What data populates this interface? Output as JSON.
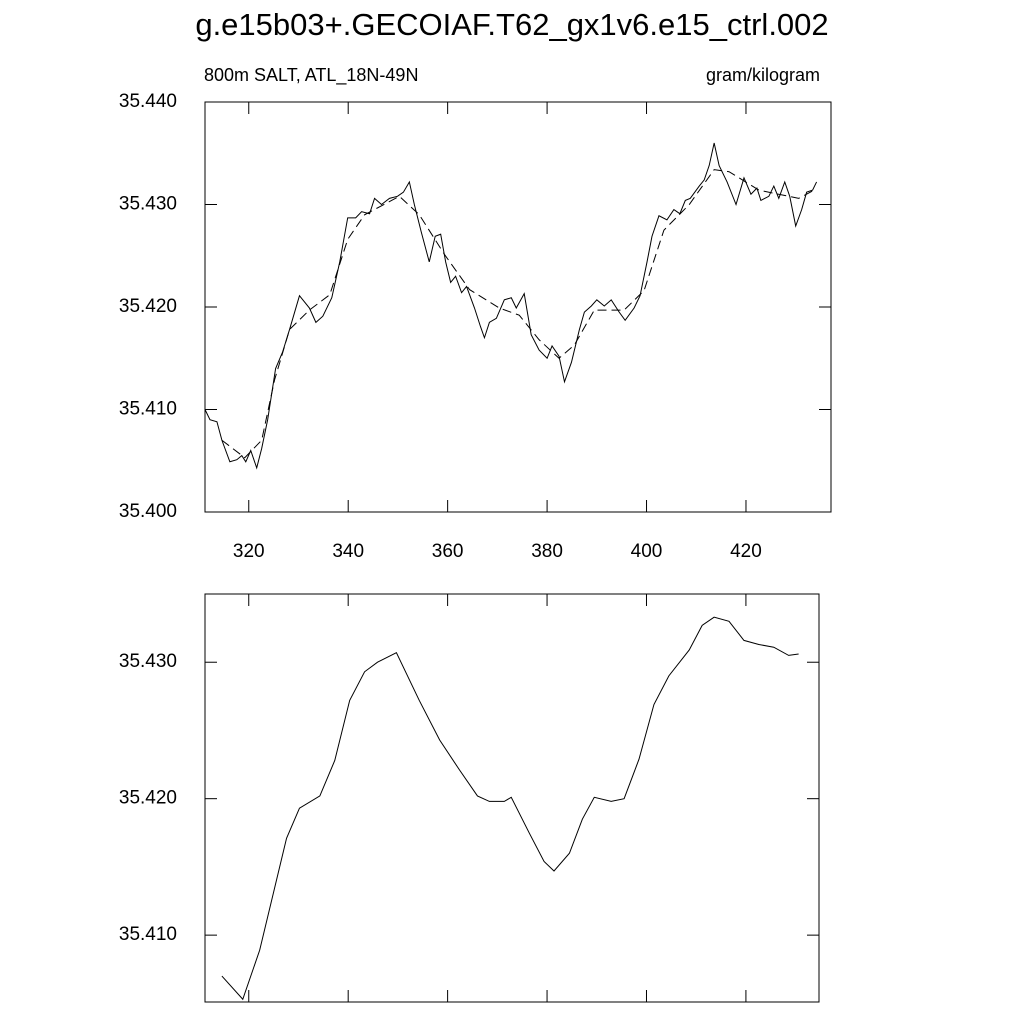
{
  "chart_data": [
    {
      "type": "line",
      "title": "g.e15b03+.GECOIAF.T62_gx1v6.e15_ctrl.002",
      "left_label": "800m SALT, ATL_18N-49N",
      "right_label": "gram/kilogram",
      "xlim": [
        311.2,
        437.1
      ],
      "xticks": [
        320,
        340,
        360,
        380,
        400,
        420
      ],
      "ylim": [
        35.4,
        35.44
      ],
      "yticks": [
        {
          "value": 35.4,
          "label": "35.400"
        },
        {
          "value": 35.41,
          "label": "35.410"
        },
        {
          "value": 35.42,
          "label": "35.420"
        },
        {
          "value": 35.43,
          "label": "35.430"
        },
        {
          "value": 35.44,
          "label": "35.440"
        }
      ],
      "series": [
        {
          "color": "#000000",
          "linestyle": "solid",
          "x": [
            311.2,
            312.2,
            313.6,
            314.6,
            316.2,
            317.6,
            318.6,
            319.4,
            320.4,
            321.6,
            322.6,
            323.8,
            325.4,
            326.8,
            328.2,
            330.2,
            332.2,
            333.5,
            334.9,
            336.7,
            338.3,
            339.9,
            341.5,
            342.7,
            344.3,
            345.3,
            346.7,
            348.3,
            349.9,
            351.1,
            352.3,
            353.3,
            354.7,
            356.3,
            357.5,
            358.6,
            359.6,
            360.6,
            361.6,
            362.8,
            363.8,
            365.4,
            366.6,
            367.4,
            368.4,
            369.8,
            371.4,
            372.8,
            373.8,
            375.4,
            376.8,
            378.4,
            380,
            381,
            382.4,
            383.5,
            384.9,
            386.5,
            387.5,
            388.9,
            390,
            391.5,
            392.9,
            394.5,
            395.7,
            397.5,
            398.7,
            400.1,
            401.1,
            402.5,
            404.1,
            405.5,
            406.7,
            407.8,
            408.8,
            410.6,
            411.6,
            412.6,
            413.6,
            414.6,
            416.2,
            418,
            419.6,
            421,
            422.2,
            423,
            424.6,
            425.6,
            426.6,
            427.8,
            428.8,
            430,
            431.2,
            432.2,
            433.4,
            434.2
          ],
          "values": [
            35.41,
            35.409,
            35.4088,
            35.407,
            35.4049,
            35.4051,
            35.4055,
            35.4049,
            35.406,
            35.4043,
            35.4062,
            35.409,
            35.414,
            35.4156,
            35.4178,
            35.4211,
            35.4199,
            35.4185,
            35.4191,
            35.4209,
            35.4244,
            35.4287,
            35.4287,
            35.4293,
            35.4291,
            35.4306,
            35.43,
            35.4306,
            35.4308,
            35.4312,
            35.4322,
            35.43,
            35.4273,
            35.4244,
            35.4269,
            35.4271,
            35.4244,
            35.4224,
            35.423,
            35.4214,
            35.422,
            35.4199,
            35.4181,
            35.417,
            35.4185,
            35.4189,
            35.4207,
            35.4209,
            35.4199,
            35.4213,
            35.4173,
            35.4158,
            35.415,
            35.4162,
            35.4152,
            35.4127,
            35.4146,
            35.4178,
            35.4195,
            35.4201,
            35.4207,
            35.4201,
            35.4207,
            35.4195,
            35.4187,
            35.4199,
            35.4211,
            35.4244,
            35.4269,
            35.4289,
            35.4285,
            35.4295,
            35.4291,
            35.4304,
            35.4306,
            35.4318,
            35.4324,
            35.4338,
            35.436,
            35.4338,
            35.4322,
            35.43,
            35.4326,
            35.431,
            35.4316,
            35.4304,
            35.4308,
            35.4318,
            35.4306,
            35.4322,
            35.4308,
            35.4279,
            35.4295,
            35.4312,
            35.4314,
            35.4322
          ]
        },
        {
          "color": "#000000",
          "linestyle": "dashed",
          "x": [
            314.6,
            319.2,
            322.6,
            325.2,
            328.2,
            332.2,
            336.3,
            339.9,
            343.3,
            350.3,
            354.3,
            359.4,
            364.4,
            370.4,
            374.4,
            378.4,
            382.4,
            385.5,
            389.5,
            395.5,
            399.5,
            403.5,
            408.6,
            413.6,
            416.6,
            422.6,
            430.6,
            433.7
          ],
          "values": [
            35.407,
            35.4053,
            35.407,
            35.4129,
            35.4178,
            35.4197,
            35.4212,
            35.4266,
            35.429,
            35.4308,
            35.429,
            35.4251,
            35.4217,
            35.4199,
            35.4192,
            35.4168,
            35.415,
            35.4163,
            35.4197,
            35.4197,
            35.4216,
            35.4275,
            35.43,
            35.4334,
            35.4332,
            35.4314,
            35.4306,
            35.4314
          ]
        }
      ]
    },
    {
      "type": "line",
      "xlim": [
        311.2,
        434.7
      ],
      "xticks": [
        320,
        340,
        360,
        380,
        400,
        420
      ],
      "ylim": [
        35.4051,
        35.435
      ],
      "yticks": [
        {
          "value": 35.41,
          "label": "35.410"
        },
        {
          "value": 35.42,
          "label": "35.420"
        },
        {
          "value": 35.43,
          "label": "35.430"
        }
      ],
      "series": [
        {
          "color": "#000000",
          "linestyle": "solid",
          "x": [
            314.6,
            318.8,
            322.2,
            327.6,
            330.2,
            334.3,
            337.3,
            340.3,
            343.3,
            345.9,
            349.7,
            354.3,
            358.4,
            362.4,
            366,
            368.4,
            371.4,
            372.8,
            376.4,
            379.4,
            381.4,
            384.5,
            387.1,
            389.5,
            392.9,
            395.5,
            398.5,
            401.5,
            404.5,
            408.6,
            411.2,
            413.6,
            416.6,
            419.6,
            422.6,
            425.6,
            428.6,
            430.6
          ],
          "values": [
            35.407,
            35.4053,
            35.4089,
            35.4171,
            35.4193,
            35.4202,
            35.4228,
            35.4272,
            35.4293,
            35.43,
            35.4307,
            35.4272,
            35.4243,
            35.4221,
            35.4202,
            35.4198,
            35.4198,
            35.4201,
            35.4175,
            35.4154,
            35.4147,
            35.416,
            35.4185,
            35.4201,
            35.4198,
            35.42,
            35.4229,
            35.4269,
            35.429,
            35.4309,
            35.4327,
            35.4333,
            35.433,
            35.4316,
            35.4313,
            35.4311,
            35.4305,
            35.4306
          ]
        }
      ]
    }
  ]
}
